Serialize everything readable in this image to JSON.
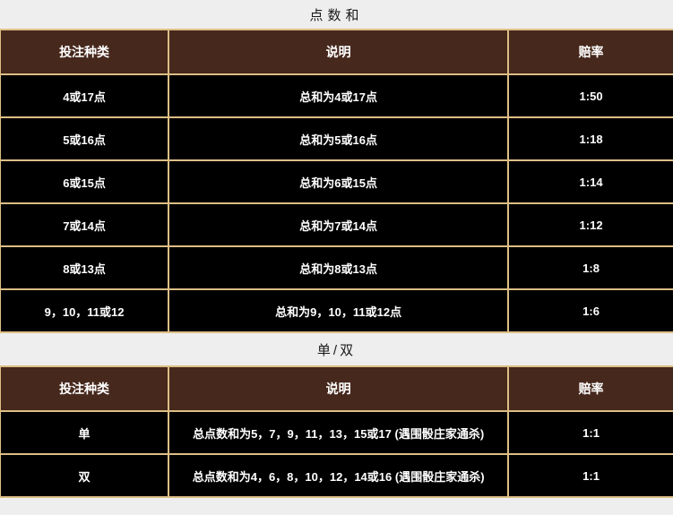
{
  "colors": {
    "accent_border": "#ddbe85",
    "header_bg": "#46281c",
    "row_bg": "#000000",
    "page_bg": "#eeeeee",
    "header_text": "#ffffff",
    "row_text": "#ffffff",
    "title_text": "#1a1a1a"
  },
  "sections": [
    {
      "title": "点数和",
      "columns": [
        "投注种类",
        "说明",
        "赔率"
      ],
      "rows": [
        [
          "4或17点",
          "总和为4或17点",
          "1:50"
        ],
        [
          "5或16点",
          "总和为5或16点",
          "1:18"
        ],
        [
          "6或15点",
          "总和为6或15点",
          "1:14"
        ],
        [
          "7或14点",
          "总和为7或14点",
          "1:12"
        ],
        [
          "8或13点",
          "总和为8或13点",
          "1:8"
        ],
        [
          "9，10，11或12",
          "总和为9，10，11或12点",
          "1:6"
        ]
      ]
    },
    {
      "title": "单/双",
      "columns": [
        "投注种类",
        "说明",
        "赔率"
      ],
      "rows": [
        [
          "单",
          "总点数和为5，7，9，11，13，15或17 (遇围骰庄家通杀)",
          "1:1"
        ],
        [
          "双",
          "总点数和为4，6，8，10，12，14或16 (遇围骰庄家通杀)",
          "1:1"
        ]
      ]
    }
  ]
}
